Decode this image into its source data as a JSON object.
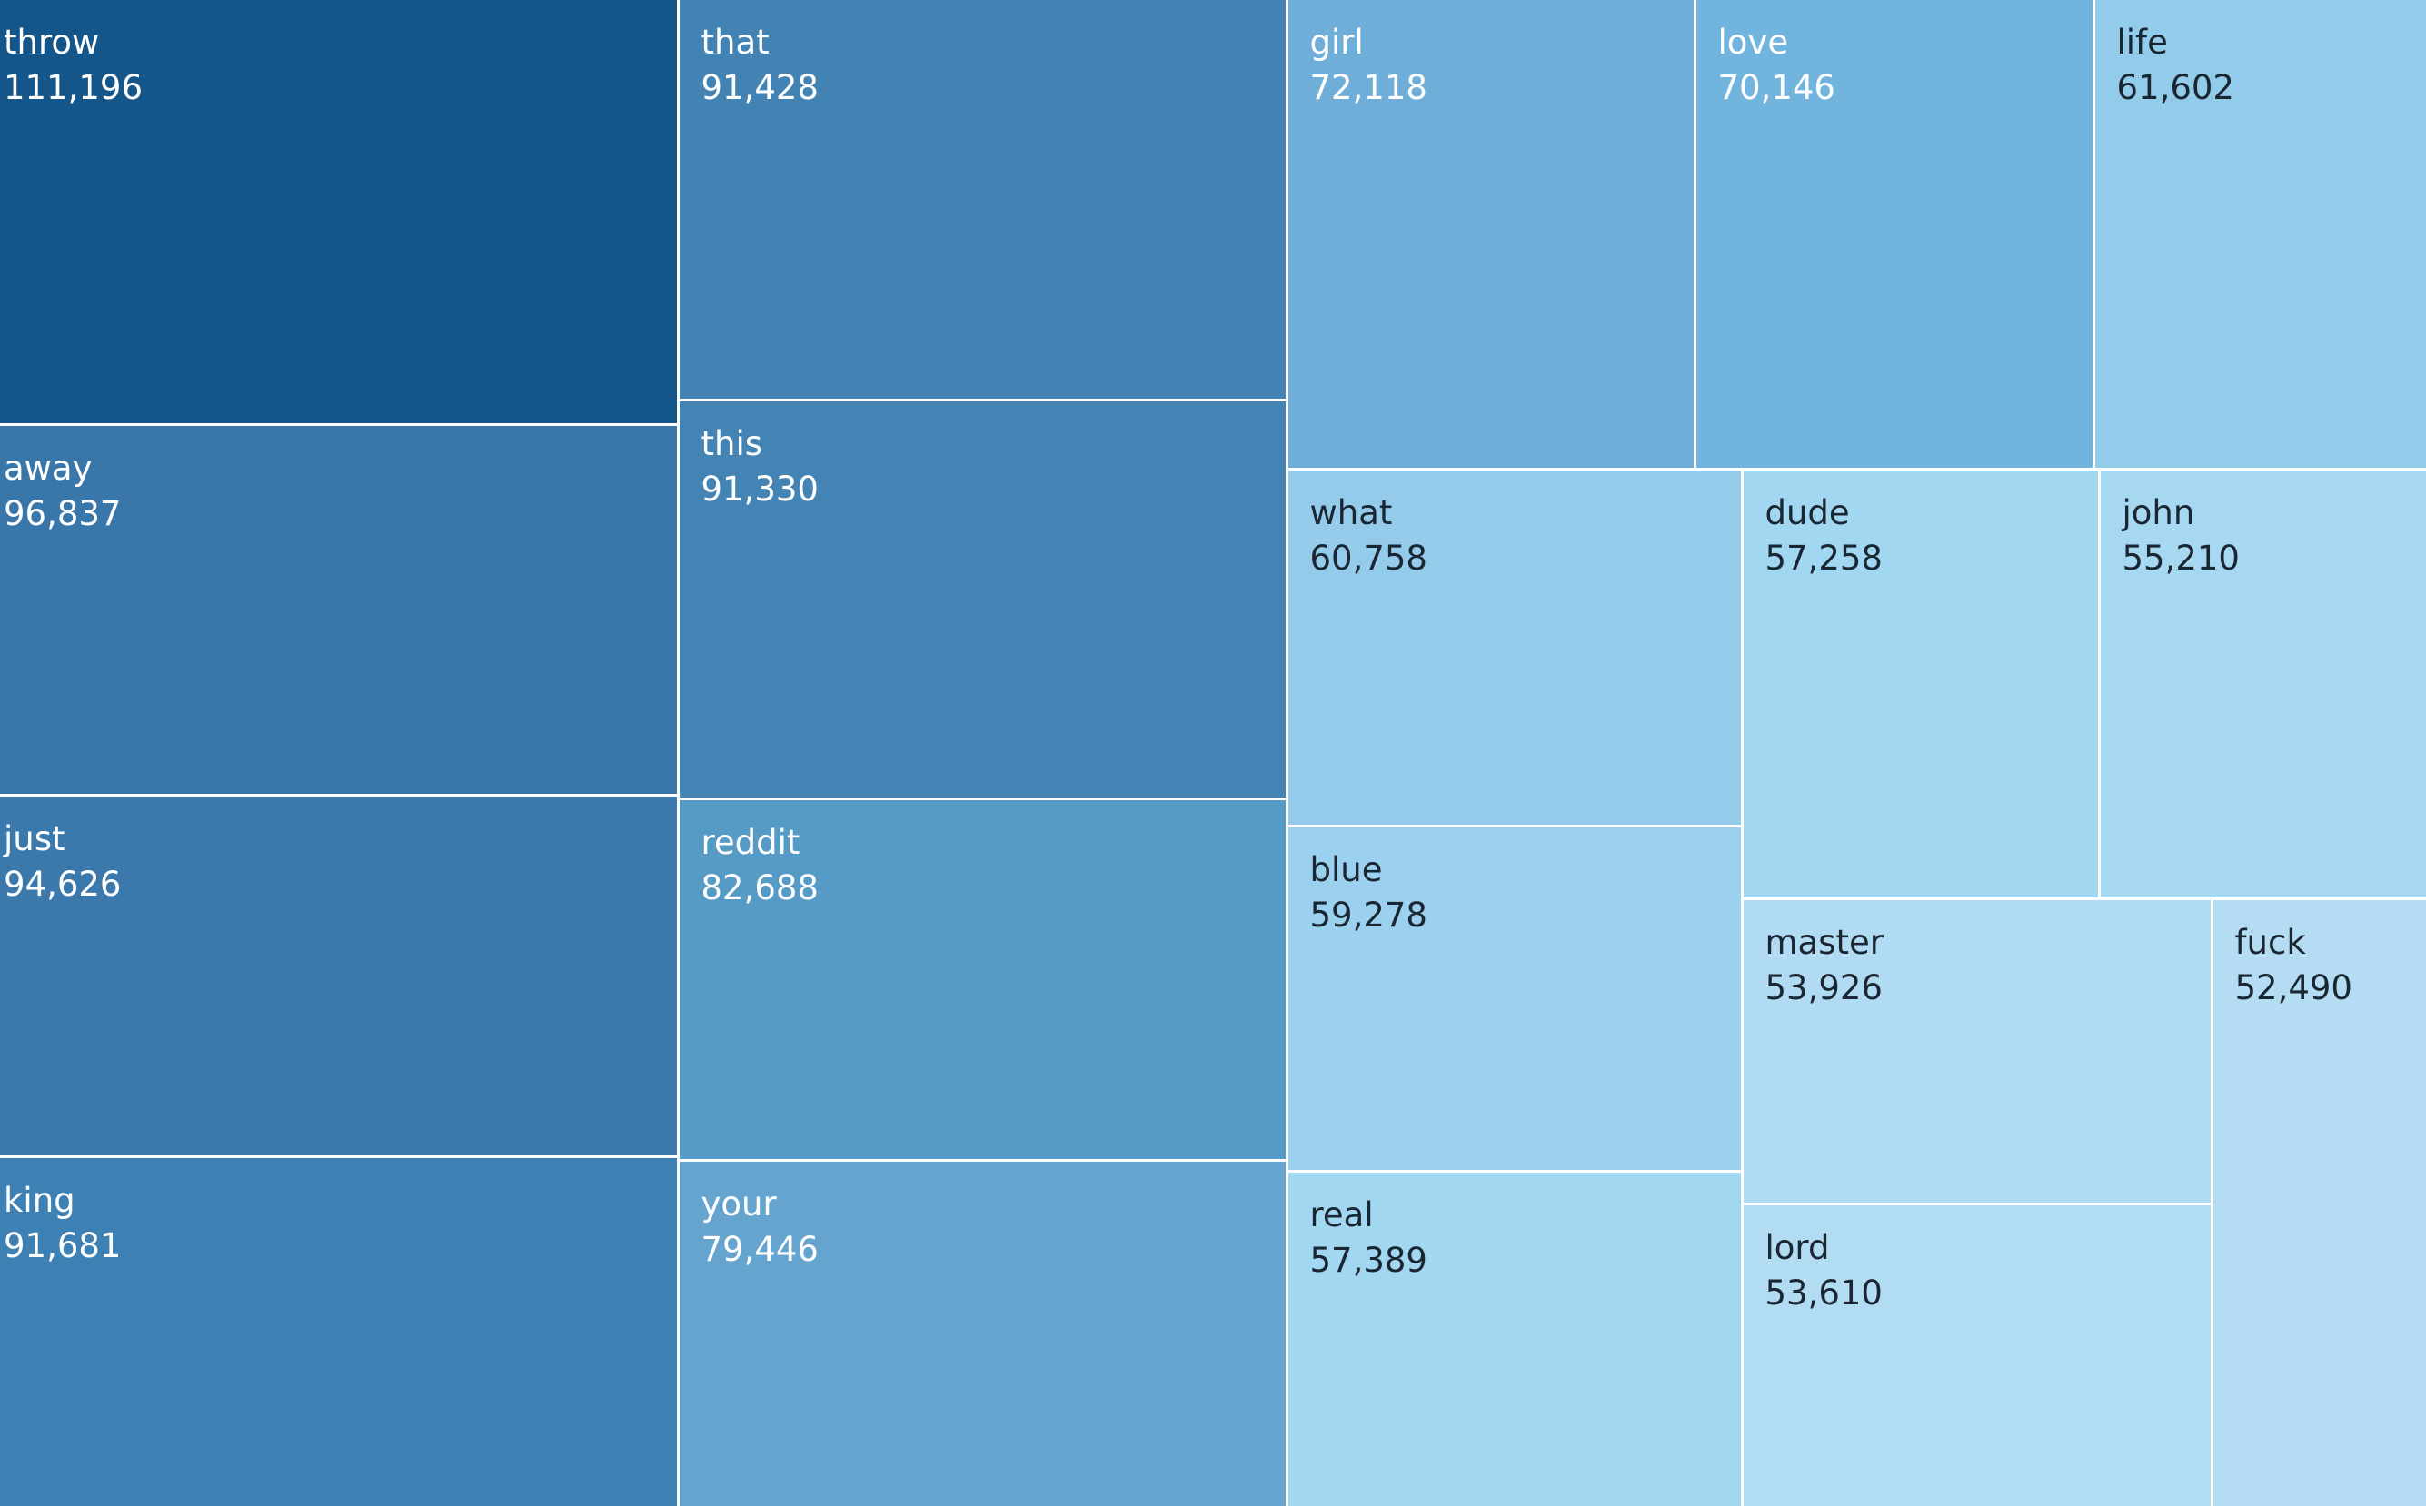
{
  "chart_data": {
    "type": "treemap",
    "value_format": "thousands-comma",
    "items": [
      {
        "label": "throw",
        "value": 111196,
        "color": "#15568a"
      },
      {
        "label": "away",
        "value": 96837,
        "color": "#3976aa"
      },
      {
        "label": "just",
        "value": 94626,
        "color": "#3b79ac"
      },
      {
        "label": "king",
        "value": 91681,
        "color": "#3d80b3"
      },
      {
        "label": "that",
        "value": 91428,
        "color": "#4383b4"
      },
      {
        "label": "this",
        "value": 91330,
        "color": "#4384b5"
      },
      {
        "label": "reddit",
        "value": 82688,
        "color": "#569ac6"
      },
      {
        "label": "your",
        "value": 79446,
        "color": "#65a4ce"
      },
      {
        "label": "girl",
        "value": 72118,
        "color": "#6faed9"
      },
      {
        "label": "love",
        "value": 70146,
        "color": "#71b5df"
      },
      {
        "label": "life",
        "value": 61602,
        "color": "#93cbea"
      },
      {
        "label": "what",
        "value": 60758,
        "color": "#94cbea"
      },
      {
        "label": "blue",
        "value": 59278,
        "color": "#9bd1ee"
      },
      {
        "label": "real",
        "value": 57389,
        "color": "#a2d7f1"
      },
      {
        "label": "dude",
        "value": 57258,
        "color": "#a1d7f1"
      },
      {
        "label": "john",
        "value": 55210,
        "color": "#a6d9f1"
      },
      {
        "label": "master",
        "value": 53926,
        "color": "#b1dbf2"
      },
      {
        "label": "lord",
        "value": 53610,
        "color": "#b2dcf2"
      },
      {
        "label": "fuck",
        "value": 52490,
        "color": "#b4ddf3"
      }
    ]
  }
}
